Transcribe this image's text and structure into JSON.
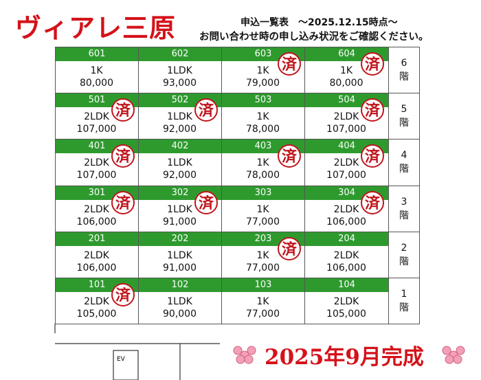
{
  "header": {
    "title": "ヴィアレ三原",
    "subtitle": "申込一覧表　～2025.12.15時点～",
    "note": "お問い合わせ時の申し込み状況をご確認ください。"
  },
  "floors": [
    {
      "number": "6",
      "suffix": "階",
      "units": [
        {
          "room": "601",
          "type": "1K",
          "price": "80,000"
        },
        {
          "room": "602",
          "type": "1LDK",
          "price": "93,000"
        },
        {
          "room": "603",
          "type": "1K",
          "price": "79,000",
          "stamp": "済"
        },
        {
          "room": "604",
          "type": "1K",
          "price": "80,000",
          "stamp": "済"
        }
      ]
    },
    {
      "number": "5",
      "suffix": "階",
      "units": [
        {
          "room": "501",
          "type": "2LDK",
          "price": "107,000",
          "stamp": "済"
        },
        {
          "room": "502",
          "type": "1LDK",
          "price": "92,000",
          "stamp": "済"
        },
        {
          "room": "503",
          "type": "1K",
          "price": "78,000"
        },
        {
          "room": "504",
          "type": "2LDK",
          "price": "107,000",
          "stamp": "済"
        }
      ]
    },
    {
      "number": "4",
      "suffix": "階",
      "units": [
        {
          "room": "401",
          "type": "2LDK",
          "price": "107,000",
          "stamp": "済"
        },
        {
          "room": "402",
          "type": "1LDK",
          "price": "92,000"
        },
        {
          "room": "403",
          "type": "1K",
          "price": "78,000",
          "stamp": "済"
        },
        {
          "room": "404",
          "type": "2LDK",
          "price": "107,000",
          "stamp": "済"
        }
      ]
    },
    {
      "number": "3",
      "suffix": "階",
      "units": [
        {
          "room": "301",
          "type": "2LDK",
          "price": "106,000",
          "stamp": "済"
        },
        {
          "room": "302",
          "type": "1LDK",
          "price": "91,000",
          "stamp": "済"
        },
        {
          "room": "303",
          "type": "1K",
          "price": "77,000"
        },
        {
          "room": "304",
          "type": "2LDK",
          "price": "106,000",
          "stamp": "済"
        }
      ]
    },
    {
      "number": "2",
      "suffix": "階",
      "units": [
        {
          "room": "201",
          "type": "2LDK",
          "price": "106,000"
        },
        {
          "room": "202",
          "type": "1LDK",
          "price": "91,000"
        },
        {
          "room": "203",
          "type": "1K",
          "price": "77,000",
          "stamp": "済"
        },
        {
          "room": "204",
          "type": "2LDK",
          "price": "106,000"
        }
      ]
    },
    {
      "number": "1",
      "suffix": "階",
      "units": [
        {
          "room": "101",
          "type": "2LDK",
          "price": "105,000",
          "stamp": "済"
        },
        {
          "room": "102",
          "type": "1LDK",
          "price": "90,000"
        },
        {
          "room": "103",
          "type": "1K",
          "price": "77,000"
        },
        {
          "room": "104",
          "type": "2LDK",
          "price": "105,000"
        }
      ]
    }
  ],
  "elevator": "EV",
  "footer": "2025年9月完成"
}
